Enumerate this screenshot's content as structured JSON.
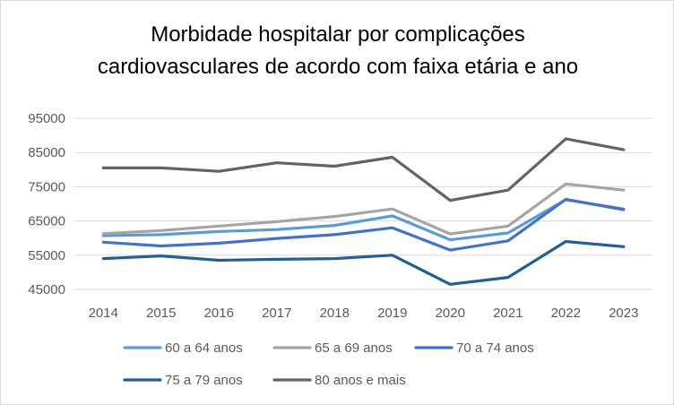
{
  "chart_data": {
    "type": "line",
    "title_lines": [
      "Morbidade hospitalar por complicações",
      "cardiovasculares de acordo com faixa etária e ano"
    ],
    "xlabel": "",
    "ylabel": "",
    "categories": [
      "2014",
      "2015",
      "2016",
      "2017",
      "2018",
      "2019",
      "2020",
      "2021",
      "2022",
      "2023"
    ],
    "ylim": [
      45000,
      95000
    ],
    "yticks": [
      45000,
      55000,
      65000,
      75000,
      85000,
      95000
    ],
    "ytick_labels": [
      "45000",
      "55000",
      "65000",
      "75000",
      "85000",
      "95000"
    ],
    "grid": true,
    "legend_position": "bottom",
    "series": [
      {
        "name": "60 a 64 anos",
        "color": "#5b9bd5",
        "values": [
          60700,
          61000,
          61900,
          62500,
          63700,
          66500,
          59500,
          61500,
          71200,
          68500
        ]
      },
      {
        "name": "65 a 69 anos",
        "color": "#a5a5a5",
        "values": [
          61300,
          62200,
          63500,
          64800,
          66300,
          68500,
          61200,
          63500,
          75800,
          74000
        ]
      },
      {
        "name": "70 a 74 anos",
        "color": "#4472c4",
        "values": [
          58800,
          57700,
          58500,
          59900,
          61000,
          63000,
          56500,
          59200,
          71300,
          68300
        ]
      },
      {
        "name": "75 a 79 anos",
        "color": "#255e91",
        "values": [
          54000,
          54800,
          53500,
          53800,
          54000,
          55000,
          46500,
          48500,
          59000,
          57500
        ]
      },
      {
        "name": "80 anos e mais",
        "color": "#636363",
        "values": [
          80500,
          80500,
          79500,
          82000,
          81000,
          83600,
          71000,
          74000,
          89000,
          85800
        ]
      }
    ]
  }
}
